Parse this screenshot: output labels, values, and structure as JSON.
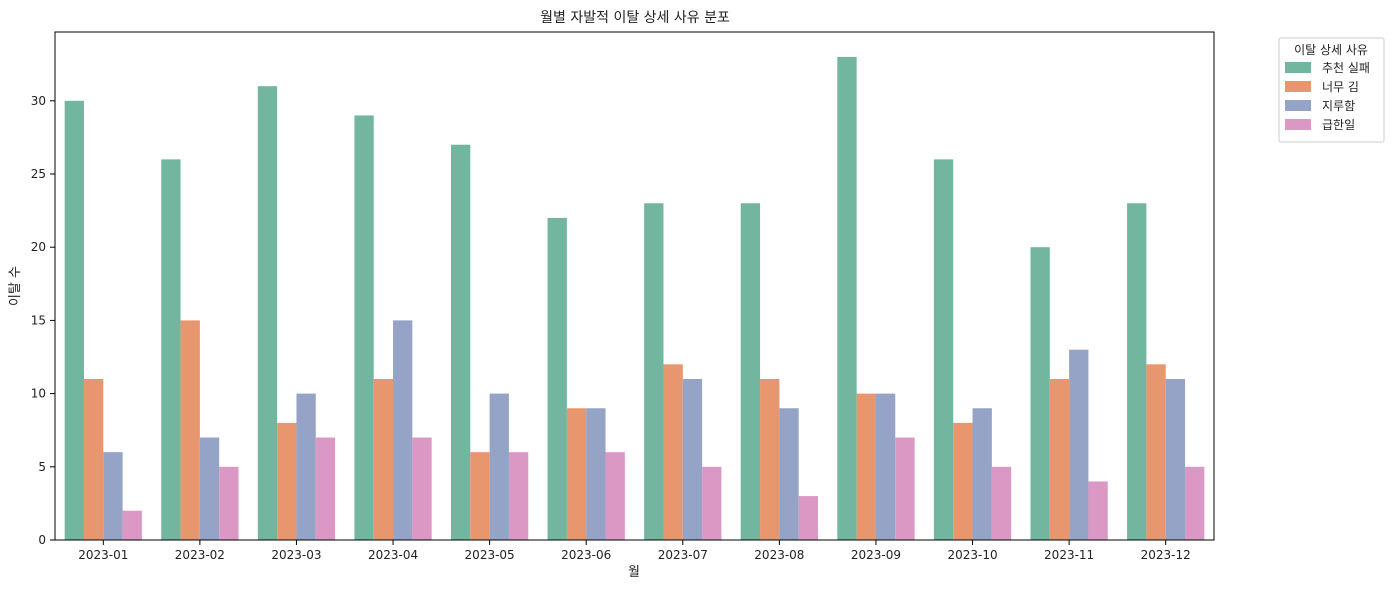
{
  "chart_data": {
    "type": "bar",
    "title": "월별 자발적 이탈 상세 사유 분포",
    "xlabel": "월",
    "ylabel": "이탈 수",
    "categories": [
      "2023-01",
      "2023-02",
      "2023-03",
      "2023-04",
      "2023-05",
      "2023-06",
      "2023-07",
      "2023-08",
      "2023-09",
      "2023-10",
      "2023-11",
      "2023-12"
    ],
    "ylim": [
      0,
      34.7
    ],
    "yticks": [
      0,
      5,
      10,
      15,
      20,
      25,
      30
    ],
    "legend_title": "이탈 상세 사유",
    "legend_position": "outside-top-right",
    "grid": false,
    "series": [
      {
        "name": "추천 실패",
        "color": "#72b6a0",
        "values": [
          30,
          26,
          31,
          29,
          27,
          22,
          23,
          23,
          33,
          26,
          20,
          23
        ]
      },
      {
        "name": "너무 김",
        "color": "#e8966e",
        "values": [
          11,
          15,
          8,
          11,
          6,
          9,
          12,
          11,
          10,
          8,
          11,
          12
        ]
      },
      {
        "name": "지루함",
        "color": "#95a3c6",
        "values": [
          6,
          7,
          10,
          15,
          10,
          9,
          11,
          9,
          10,
          9,
          13,
          11
        ]
      },
      {
        "name": "급한일",
        "color": "#dc98c4",
        "values": [
          2,
          5,
          7,
          7,
          6,
          6,
          5,
          3,
          7,
          5,
          4,
          5
        ]
      }
    ]
  }
}
